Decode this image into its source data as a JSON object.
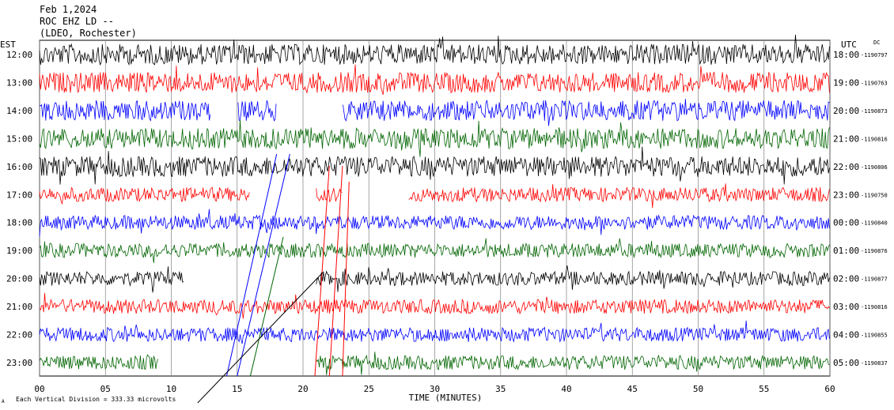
{
  "header": {
    "date": "Feb 1,2024",
    "station": "ROC EHZ LD --",
    "location": "(LDEO, Rochester)"
  },
  "left_label": "EST",
  "right_label": "UTC",
  "dc_label": "DC",
  "footer": {
    "scale_text": "Each Vertical Division =  333.33 microvolts",
    "small_mark": "A"
  },
  "colors": {
    "black": "#000000",
    "red": "#ff0000",
    "blue": "#0000ff",
    "green": "#006400",
    "grid": "#000000"
  },
  "chart_data": {
    "type": "line",
    "title": "",
    "xlabel": "TIME (MINUTES)",
    "ylabel": "",
    "xlim": [
      0,
      60
    ],
    "x_ticks": [
      "00",
      "05",
      "10",
      "15",
      "20",
      "25",
      "30",
      "35",
      "40",
      "45",
      "50",
      "55",
      "60"
    ],
    "grid": true,
    "series": [
      {
        "est": "12:00",
        "utc": "18:00",
        "dc": "-1190797",
        "color": "black",
        "amplitude": "high",
        "gaps": []
      },
      {
        "est": "13:00",
        "utc": "19:00",
        "dc": "-1190763",
        "color": "red",
        "amplitude": "high",
        "gaps": []
      },
      {
        "est": "14:00",
        "utc": "20:00",
        "dc": "-1190873",
        "color": "blue",
        "amplitude": "high",
        "gaps": [
          [
            13,
            15
          ],
          [
            18,
            23
          ]
        ]
      },
      {
        "est": "15:00",
        "utc": "21:00",
        "dc": "-1190816",
        "color": "green",
        "amplitude": "high",
        "gaps": []
      },
      {
        "est": "16:00",
        "utc": "22:00",
        "dc": "-1190806",
        "color": "black",
        "amplitude": "high",
        "gaps": []
      },
      {
        "est": "17:00",
        "utc": "23:00",
        "dc": "-1190750",
        "color": "red",
        "amplitude": "mid",
        "gaps": [
          [
            16,
            21
          ],
          [
            23,
            28
          ]
        ]
      },
      {
        "est": "18:00",
        "utc": "00:00",
        "dc": "-1190840",
        "color": "blue",
        "amplitude": "mid",
        "gaps": []
      },
      {
        "est": "19:00",
        "utc": "01:00",
        "dc": "-1190876",
        "color": "green",
        "amplitude": "mid",
        "gaps": []
      },
      {
        "est": "20:00",
        "utc": "02:00",
        "dc": "-1190877",
        "color": "black",
        "amplitude": "mid",
        "gaps": [
          [
            11,
            21
          ]
        ]
      },
      {
        "est": "21:00",
        "utc": "03:00",
        "dc": "-1190816",
        "color": "red",
        "amplitude": "mid",
        "gaps": []
      },
      {
        "est": "22:00",
        "utc": "04:00",
        "dc": "-1190855",
        "color": "blue",
        "amplitude": "mid",
        "gaps": []
      },
      {
        "est": "23:00",
        "utc": "05:00",
        "dc": "-1190837",
        "color": "green",
        "amplitude": "mid",
        "gaps": [
          [
            9,
            21
          ]
        ]
      }
    ]
  }
}
